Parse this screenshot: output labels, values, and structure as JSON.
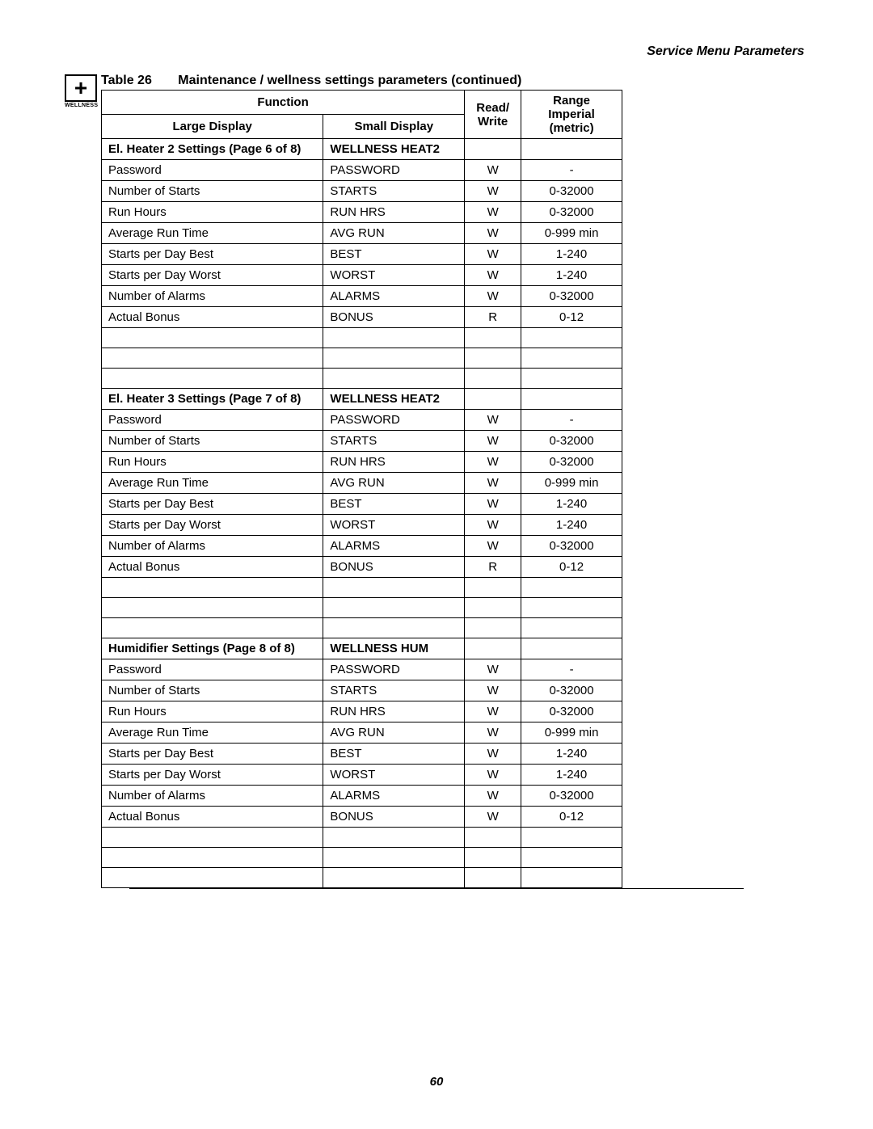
{
  "header": {
    "section_title": "Service Menu Parameters",
    "table_label": "Table 26",
    "table_title": "Maintenance / wellness settings parameters (continued)",
    "icon_label": "WELLNESS",
    "icon_symbol": "+"
  },
  "columns": {
    "function": "Function",
    "large_display": "Large Display",
    "small_display": "Small Display",
    "read_write_1": "Read/",
    "read_write_2": "Write",
    "range_1": "Range",
    "range_2": "Imperial (metric)"
  },
  "sections": [
    {
      "large": "El. Heater 2 Settings (Page 6 of 8)",
      "small": "WELLNESS HEAT2",
      "rows": [
        {
          "large": "Password",
          "small": "PASSWORD",
          "rw": "W",
          "range": "-"
        },
        {
          "large": "Number of Starts",
          "small": "STARTS",
          "rw": "W",
          "range": "0-32000"
        },
        {
          "large": "Run Hours",
          "small": "RUN HRS",
          "rw": "W",
          "range": "0-32000"
        },
        {
          "large": "Average Run Time",
          "small": "AVG RUN",
          "rw": "W",
          "range": "0-999 min"
        },
        {
          "large": "Starts per Day Best",
          "small": "BEST",
          "rw": "W",
          "range": "1-240"
        },
        {
          "large": "Starts per Day Worst",
          "small": "WORST",
          "rw": "W",
          "range": "1-240"
        },
        {
          "large": "Number of Alarms",
          "small": "ALARMS",
          "rw": "W",
          "range": "0-32000"
        },
        {
          "large": "Actual Bonus",
          "small": "BONUS",
          "rw": "R",
          "range": "0-12"
        }
      ]
    },
    {
      "large": "El. Heater 3 Settings (Page 7 of 8)",
      "small": "WELLNESS HEAT2",
      "rows": [
        {
          "large": "Password",
          "small": "PASSWORD",
          "rw": "W",
          "range": "-"
        },
        {
          "large": "Number of Starts",
          "small": "STARTS",
          "rw": "W",
          "range": "0-32000"
        },
        {
          "large": "Run Hours",
          "small": "RUN HRS",
          "rw": "W",
          "range": "0-32000"
        },
        {
          "large": "Average Run Time",
          "small": "AVG RUN",
          "rw": "W",
          "range": "0-999 min"
        },
        {
          "large": "Starts per Day Best",
          "small": "BEST",
          "rw": "W",
          "range": "1-240"
        },
        {
          "large": "Starts per Day Worst",
          "small": "WORST",
          "rw": "W",
          "range": "1-240"
        },
        {
          "large": "Number of Alarms",
          "small": "ALARMS",
          "rw": "W",
          "range": "0-32000"
        },
        {
          "large": "Actual Bonus",
          "small": "BONUS",
          "rw": "R",
          "range": "0-12"
        }
      ]
    },
    {
      "large": "Humidifier Settings (Page 8 of 8)",
      "small": "WELLNESS HUM",
      "rows": [
        {
          "large": "Password",
          "small": "PASSWORD",
          "rw": "W",
          "range": "-"
        },
        {
          "large": "Number of Starts",
          "small": "STARTS",
          "rw": "W",
          "range": "0-32000"
        },
        {
          "large": "Run Hours",
          "small": "RUN HRS",
          "rw": "W",
          "range": "0-32000"
        },
        {
          "large": "Average Run Time",
          "small": "AVG RUN",
          "rw": "W",
          "range": "0-999 min"
        },
        {
          "large": "Starts per Day Best",
          "small": "BEST",
          "rw": "W",
          "range": "1-240"
        },
        {
          "large": "Starts per Day Worst",
          "small": "WORST",
          "rw": "W",
          "range": "1-240"
        },
        {
          "large": "Number of Alarms",
          "small": "ALARMS",
          "rw": "W",
          "range": "0-32000"
        },
        {
          "large": "Actual Bonus",
          "small": "BONUS",
          "rw": "W",
          "range": "0-12"
        }
      ]
    }
  ],
  "footer": {
    "page_number": "60"
  }
}
